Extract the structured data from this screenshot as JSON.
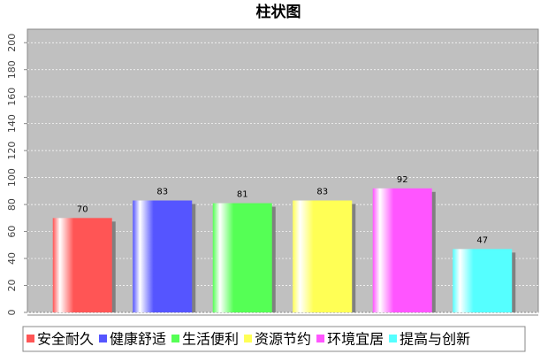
{
  "chart_data": {
    "type": "bar",
    "title": "柱状图",
    "categories": [
      "安全耐久",
      "健康舒适",
      "生活便利",
      "资源节约",
      "环境宜居",
      "提高与创新"
    ],
    "values": [
      70,
      83,
      81,
      83,
      92,
      47
    ],
    "colors": [
      "#ff5555",
      "#5555ff",
      "#55ff55",
      "#ffff55",
      "#ff55ff",
      "#55ffff"
    ],
    "ylim": [
      0,
      210
    ],
    "yticks": [
      0,
      20,
      40,
      60,
      80,
      100,
      120,
      140,
      160,
      180,
      200
    ],
    "grid": true
  }
}
